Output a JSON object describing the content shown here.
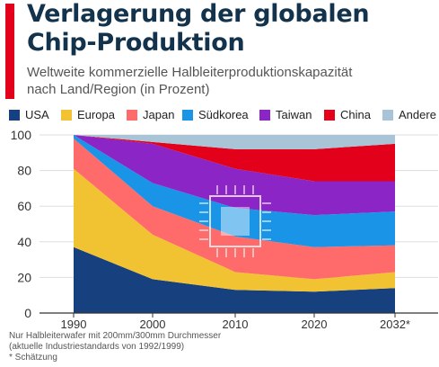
{
  "header": {
    "title_line1": "Verlagerung der globalen",
    "title_line2": "Chip-Produktion",
    "subtitle_line1": "Weltweite kommerzielle Halbleiterproduktionskapazität",
    "subtitle_line2": "nach Land/Region (in Prozent)"
  },
  "footnote": {
    "line1": "Nur Halbleiterwafer mit 200mm/300mm Durchmesser",
    "line2": "(aktuelle Industriestandards von 1992/1999)",
    "line3": "* Schätzung"
  },
  "colors": {
    "accent": "#e2001a",
    "title": "#13334c"
  },
  "chart_data": {
    "type": "area",
    "stacked": true,
    "x": [
      "1990",
      "2000",
      "2010",
      "2020",
      "2032*"
    ],
    "ylim": [
      0,
      100
    ],
    "yticks": [
      0,
      20,
      40,
      60,
      80,
      100
    ],
    "grid": true,
    "legend_position": "top",
    "xlabel": "",
    "ylabel": "",
    "series": [
      {
        "name": "USA",
        "color": "#17407e",
        "values": [
          37,
          19,
          13,
          12,
          14
        ]
      },
      {
        "name": "Europa",
        "color": "#f1c232",
        "values": [
          44,
          25,
          10,
          7,
          9
        ]
      },
      {
        "name": "Japan",
        "color": "#ff6b6b",
        "values": [
          17,
          16,
          20,
          18,
          15
        ]
      },
      {
        "name": "Südkorea",
        "color": "#1994e6",
        "values": [
          2,
          13,
          16,
          18,
          19
        ]
      },
      {
        "name": "Taiwan",
        "color": "#8b25c5",
        "values": [
          0,
          22,
          22,
          19,
          17
        ]
      },
      {
        "name": "China",
        "color": "#e2001a",
        "values": [
          0,
          1,
          11,
          18,
          21
        ]
      },
      {
        "name": "Andere",
        "color": "#a9c4d6",
        "values": [
          0,
          4,
          8,
          8,
          5
        ]
      }
    ]
  }
}
